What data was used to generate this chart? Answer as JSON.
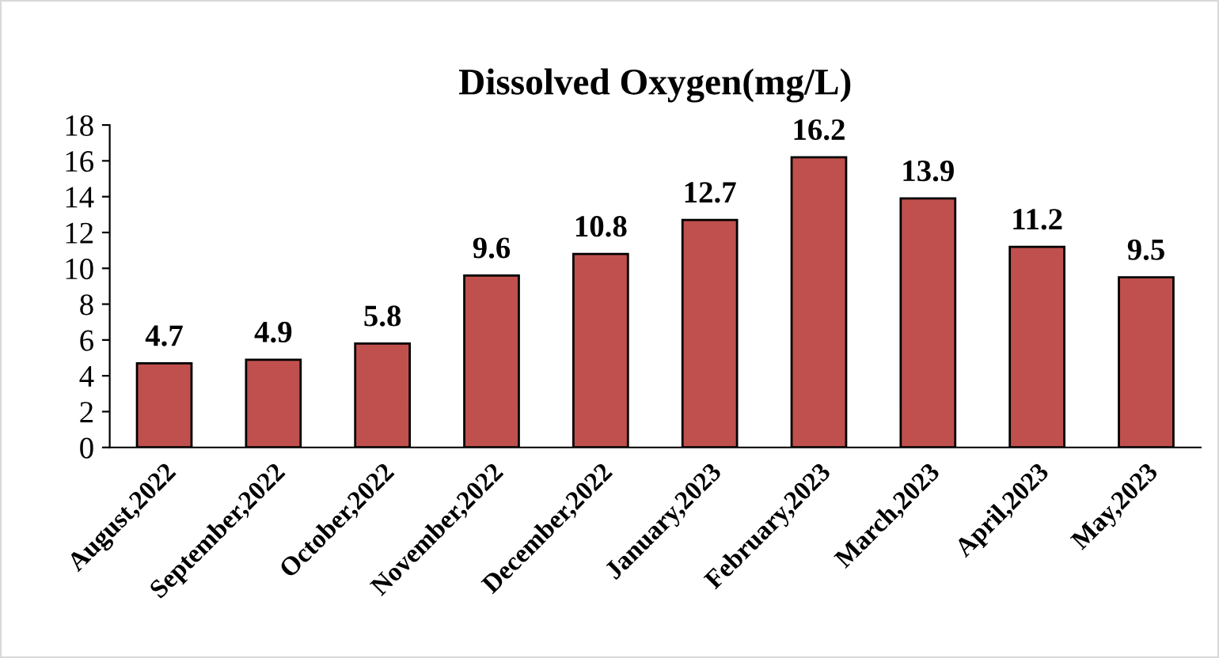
{
  "chart_data": {
    "type": "bar",
    "title": "Dissolved Oxygen(mg/L)",
    "categories": [
      "August,2022",
      "September,2022",
      "October,2022",
      "November,2022",
      "December,2022",
      "January,2023",
      "February,2023",
      "March,2023",
      "April,2023",
      "May,2023"
    ],
    "values": [
      4.7,
      4.9,
      5.8,
      9.6,
      10.8,
      12.7,
      16.2,
      13.9,
      11.2,
      9.5
    ],
    "color": "#c0504d",
    "ylim": [
      0,
      18
    ],
    "yticks": [
      0,
      2,
      4,
      6,
      8,
      10,
      12,
      14,
      16,
      18
    ],
    "data_labels": true,
    "grid": false,
    "legend": false
  }
}
